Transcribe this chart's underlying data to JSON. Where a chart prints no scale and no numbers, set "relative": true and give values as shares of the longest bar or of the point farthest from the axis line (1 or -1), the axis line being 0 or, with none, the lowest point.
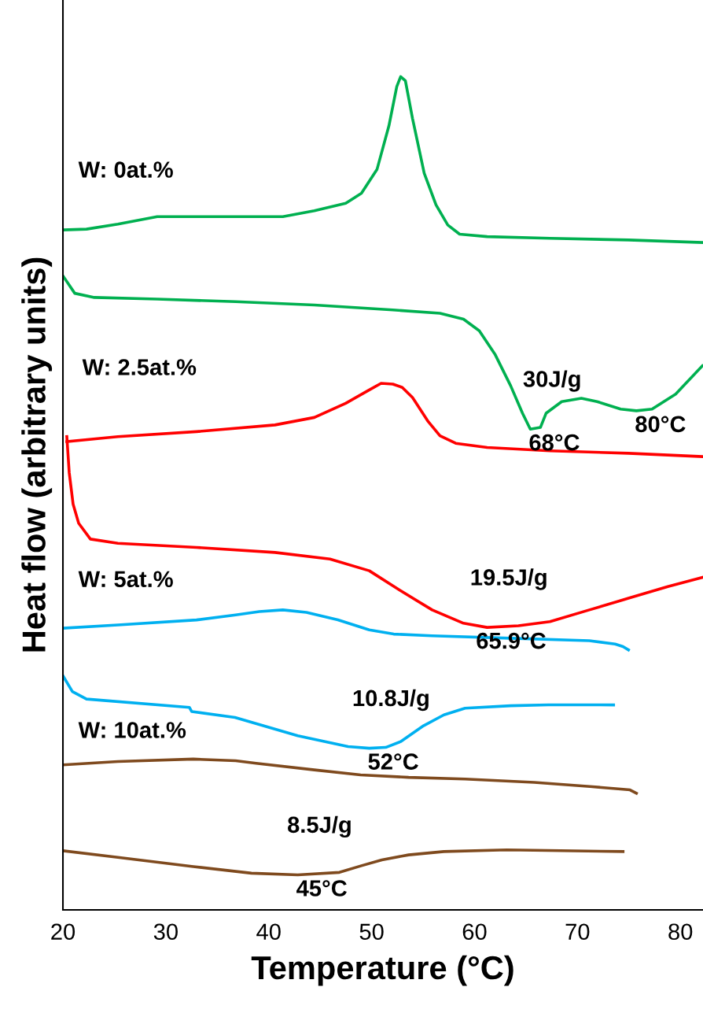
{
  "chart_data": {
    "type": "line",
    "relative": true,
    "xlabel": "Temperature (°C)",
    "ylabel": "Heat flow (arbitrary units)",
    "xlim": [
      20,
      82.2
    ],
    "xticks": [
      20,
      30,
      40,
      50,
      60,
      70,
      80
    ],
    "grid": false,
    "legend": false,
    "marker": "none",
    "line_style": "solid",
    "series": [
      {
        "name": "W: 0at.%",
        "color": "#00b050",
        "x": [
          20,
          22.29,
          25.34,
          29.16,
          32.98,
          36.79,
          41.37,
          44.43,
          47.48,
          49.01,
          50.53,
          51.68,
          52.44,
          52.82,
          53.28,
          53.97,
          55.11,
          56.26,
          57.4,
          58.55,
          61.22,
          67.33,
          74.96,
          82.14
        ],
        "values": [
          0.816,
          0.817,
          0.823,
          0.832,
          0.832,
          0.832,
          0.832,
          0.839,
          0.848,
          0.86,
          0.889,
          0.941,
          0.988,
          1.0,
          0.995,
          0.95,
          0.884,
          0.846,
          0.822,
          0.811,
          0.808,
          0.806,
          0.804,
          0.801
        ]
      },
      {
        "color": "#00b050",
        "x": [
          20,
          21.15,
          23.05,
          29.16,
          36.79,
          44.43,
          52.06,
          56.64,
          58.93,
          60.46,
          61.98,
          63.51,
          64.66,
          65.42,
          66.4,
          66.95,
          68.47,
          70.38,
          71.91,
          74.2,
          75.73,
          77.25,
          79.54,
          82.14
        ],
        "values": [
          0.761,
          0.74,
          0.735,
          0.733,
          0.73,
          0.726,
          0.72,
          0.716,
          0.709,
          0.695,
          0.667,
          0.629,
          0.596,
          0.577,
          0.579,
          0.596,
          0.61,
          0.614,
          0.61,
          0.601,
          0.599,
          0.601,
          0.619,
          0.653
        ]
      },
      {
        "name": "W: 2.5at.%",
        "color": "#ff0000",
        "x": [
          20.38,
          25.34,
          32.98,
          40.61,
          44.43,
          47.48,
          49.77,
          50.92,
          52.06,
          52.98,
          53.97,
          55.5,
          56.64,
          58.17,
          61.22,
          67.33,
          74.96,
          82.14
        ],
        "values": [
          0.562,
          0.568,
          0.574,
          0.582,
          0.591,
          0.608,
          0.624,
          0.632,
          0.631,
          0.627,
          0.615,
          0.586,
          0.569,
          0.56,
          0.555,
          0.551,
          0.548,
          0.544
        ]
      },
      {
        "color": "#ff0000",
        "x": [
          20.38,
          20.61,
          20.99,
          21.53,
          22.67,
          25.34,
          32.98,
          40.61,
          45.95,
          49.77,
          52.82,
          55.88,
          58.93,
          61.22,
          64.27,
          67.33,
          71.15,
          74.96,
          78.78,
          82.14
        ],
        "values": [
          0.568,
          0.525,
          0.487,
          0.464,
          0.445,
          0.44,
          0.435,
          0.429,
          0.421,
          0.407,
          0.383,
          0.36,
          0.344,
          0.339,
          0.341,
          0.346,
          0.36,
          0.374,
          0.388,
          0.399
        ]
      },
      {
        "name": "W: 5at.%",
        "color": "#00b0f0",
        "x": [
          20,
          25.34,
          32.98,
          36.79,
          39.08,
          41.37,
          43.66,
          46.72,
          49.77,
          52.14,
          55.88,
          63.51,
          71.15,
          73.66,
          74.43,
          74.96
        ],
        "values": [
          0.338,
          0.342,
          0.348,
          0.354,
          0.358,
          0.36,
          0.357,
          0.348,
          0.336,
          0.331,
          0.329,
          0.326,
          0.323,
          0.319,
          0.316,
          0.312
        ]
      },
      {
        "color": "#00b0f0",
        "x": [
          20,
          20.92,
          22.29,
          32.29,
          32.52,
          36.72,
          42.82,
          47.71,
          49.77,
          51.37,
          52.82,
          55.04,
          57.02,
          59.08,
          63.51,
          67.18,
          73.51
        ],
        "values": [
          0.281,
          0.262,
          0.253,
          0.243,
          0.238,
          0.231,
          0.209,
          0.196,
          0.194,
          0.195,
          0.202,
          0.221,
          0.234,
          0.242,
          0.245,
          0.246,
          0.246
        ]
      },
      {
        "name": "W: 10at.%",
        "color": "#7f4a1e",
        "x": [
          20,
          25.34,
          32.67,
          36.79,
          38.78,
          44.43,
          48.93,
          53.59,
          59.08,
          65.8,
          71.22,
          74.2,
          75.11,
          75.73
        ],
        "values": [
          0.174,
          0.178,
          0.181,
          0.179,
          0.176,
          0.168,
          0.162,
          0.159,
          0.157,
          0.153,
          0.148,
          0.145,
          0.144,
          0.14
        ]
      },
      {
        "color": "#7f4a1e",
        "x": [
          20,
          25.34,
          32.67,
          38.32,
          42.82,
          46.87,
          49.01,
          50.99,
          53.59,
          57.02,
          63.13,
          74.43
        ],
        "values": [
          0.071,
          0.063,
          0.052,
          0.044,
          0.042,
          0.045,
          0.053,
          0.06,
          0.066,
          0.07,
          0.072,
          0.07
        ]
      }
    ],
    "annotations": [
      {
        "text": "30J/g",
        "x": 65.42,
        "y": 0.577
      },
      {
        "text": "68°C",
        "x": 65.42,
        "y": 0.577
      },
      {
        "text": "80°C",
        "x": 75.73,
        "y": 0.599
      },
      {
        "text": "19.5J/g",
        "x": 61.22,
        "y": 0.339
      },
      {
        "text": "65.9°C",
        "x": 61.22,
        "y": 0.339
      },
      {
        "text": "10.8J/g",
        "x": 49.77,
        "y": 0.194
      },
      {
        "text": "52°C",
        "x": 49.77,
        "y": 0.194
      },
      {
        "text": "8.5J/g",
        "x": 42.82,
        "y": 0.042
      },
      {
        "text": "45°C",
        "x": 42.82,
        "y": 0.042
      }
    ]
  }
}
